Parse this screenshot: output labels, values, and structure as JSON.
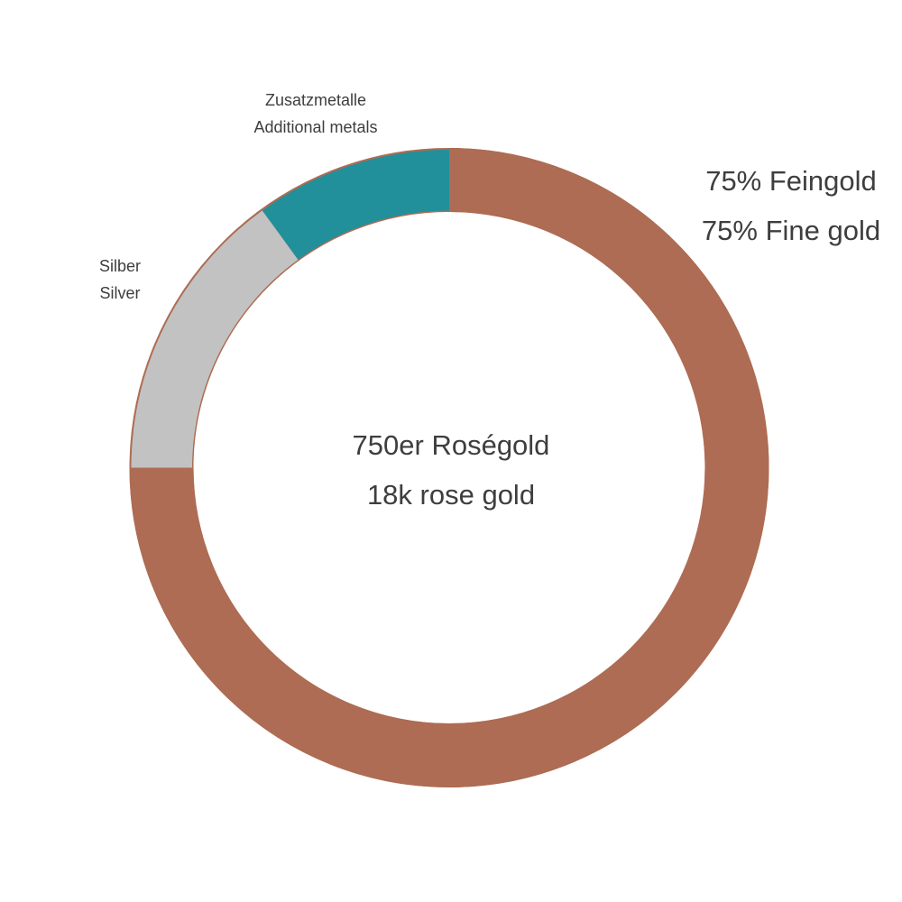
{
  "chart_data": {
    "type": "pie",
    "subtype": "donut",
    "direction": "clockwise",
    "start_angle_deg": 0,
    "grid": false,
    "legend_position": "labels-around-chart",
    "center_label": {
      "de": "750er Roségold",
      "en": "18k rose gold"
    },
    "slices": [
      {
        "name": "fine-gold",
        "label_de": "75% Feingold",
        "label_en": "75% Fine gold",
        "value": 75,
        "color": "#AD6C53"
      },
      {
        "name": "silver",
        "label_de": "Silber",
        "label_en": "Silver",
        "value": 15,
        "color": "#C2C2C2"
      },
      {
        "name": "additional-metals",
        "label_de": "Zusatzmetalle",
        "label_en": "Additional metals",
        "value": 10,
        "color": "#21909A"
      }
    ]
  },
  "colors": {
    "background": "#FFFFFF",
    "text": "#3E3E3E",
    "fine_gold": "#AD6C53",
    "silver": "#C2C2C2",
    "additional_metals": "#21909A"
  }
}
